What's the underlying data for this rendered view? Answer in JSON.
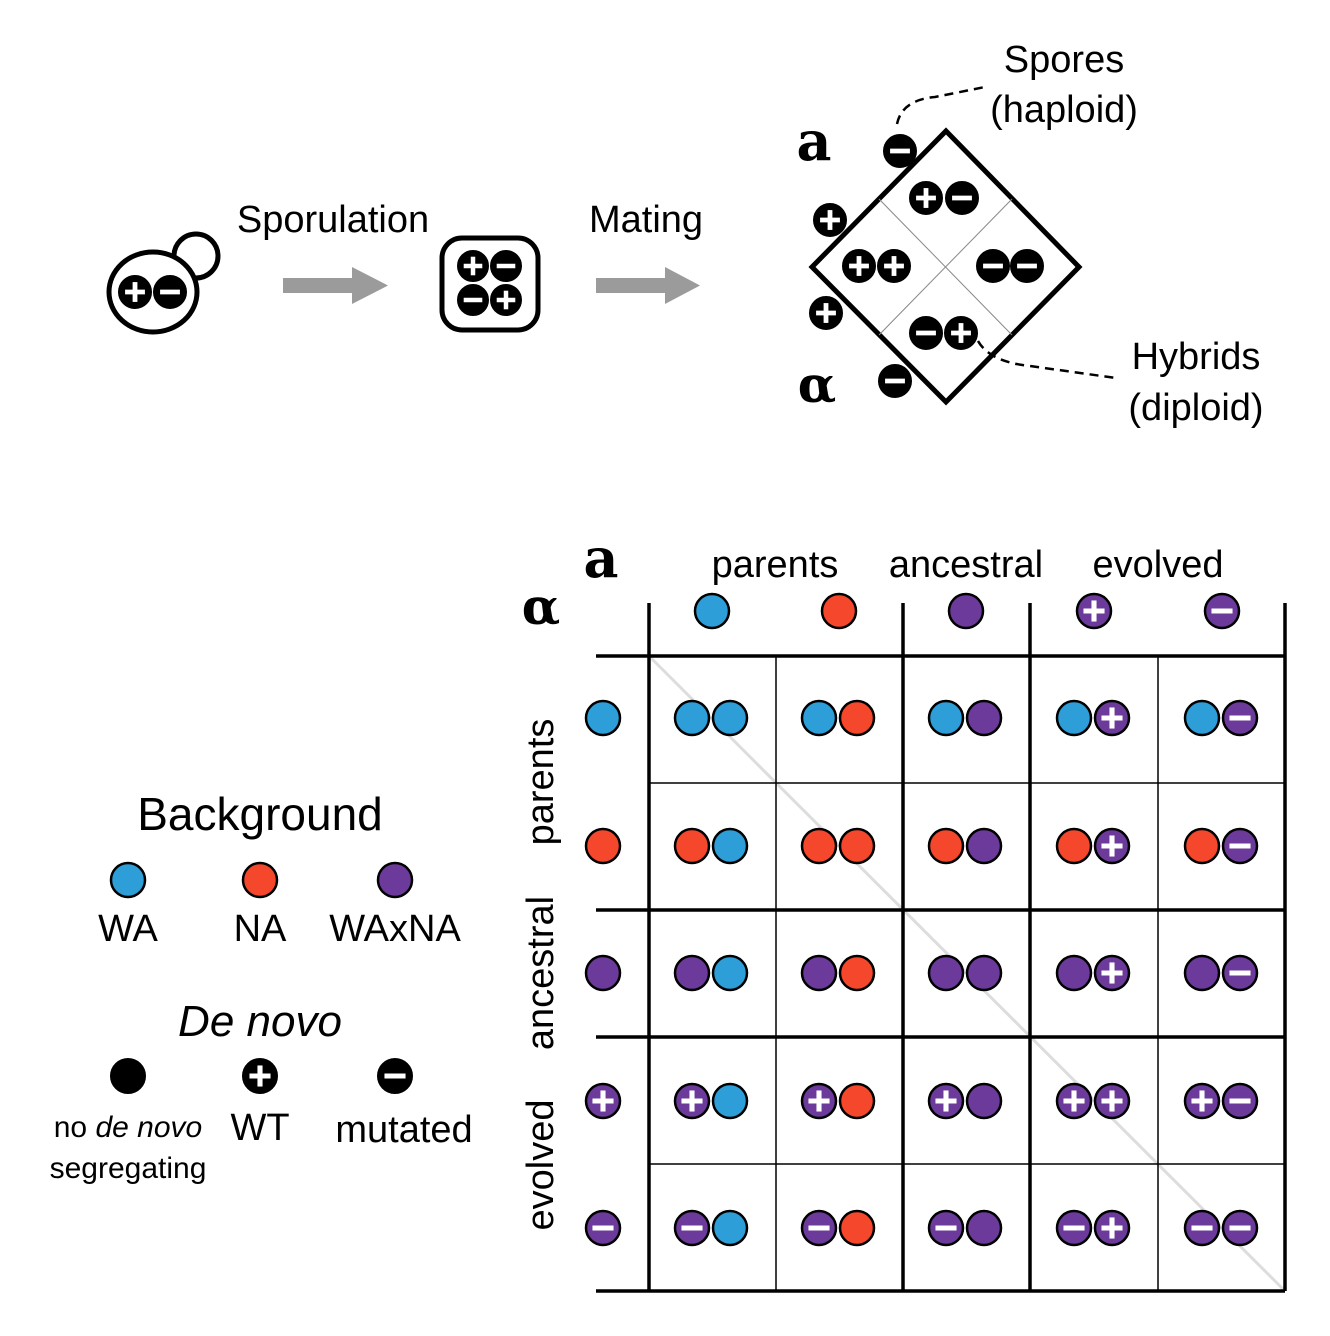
{
  "colors": {
    "WA": "#2E9ED8",
    "NA": "#F5472C",
    "hybrid": "#6B3A9A",
    "de_novo": "#000000",
    "arrow": "#9b9b9b",
    "diagonal": "#dddddd"
  },
  "process": {
    "sporulation_label": "Sporulation",
    "mating_label": "Mating",
    "mating_type_a": "a",
    "mating_type_alpha": "α",
    "spores_label_line1": "Spores",
    "spores_label_line2": "(haploid)",
    "hybrids_label_line1": "Hybrids",
    "hybrids_label_line2": "(diploid)"
  },
  "legend": {
    "background_title": "Background",
    "background_items": [
      {
        "key": "WA",
        "label": "WA"
      },
      {
        "key": "NA",
        "label": "NA"
      },
      {
        "key": "hybrid",
        "label": "WAxNA"
      }
    ],
    "de_novo_title": "De novo",
    "de_novo_items": [
      {
        "symbol": "none",
        "line1_plain": "no ",
        "line1_italic": "de novo",
        "line2": "segregating"
      },
      {
        "symbol": "plus",
        "label": "WT"
      },
      {
        "symbol": "minus",
        "label": "mutated"
      }
    ]
  },
  "matrix": {
    "corner_a": "a",
    "corner_alpha": "α",
    "column_groups": [
      "parents",
      "ancestral",
      "evolved"
    ],
    "row_groups": [
      "parents",
      "ancestral",
      "evolved"
    ],
    "genotypes": [
      {
        "color": "WA",
        "symbol": "none"
      },
      {
        "color": "NA",
        "symbol": "none"
      },
      {
        "color": "hybrid",
        "symbol": "none"
      },
      {
        "color": "hybrid",
        "symbol": "plus"
      },
      {
        "color": "hybrid",
        "symbol": "minus"
      }
    ]
  }
}
